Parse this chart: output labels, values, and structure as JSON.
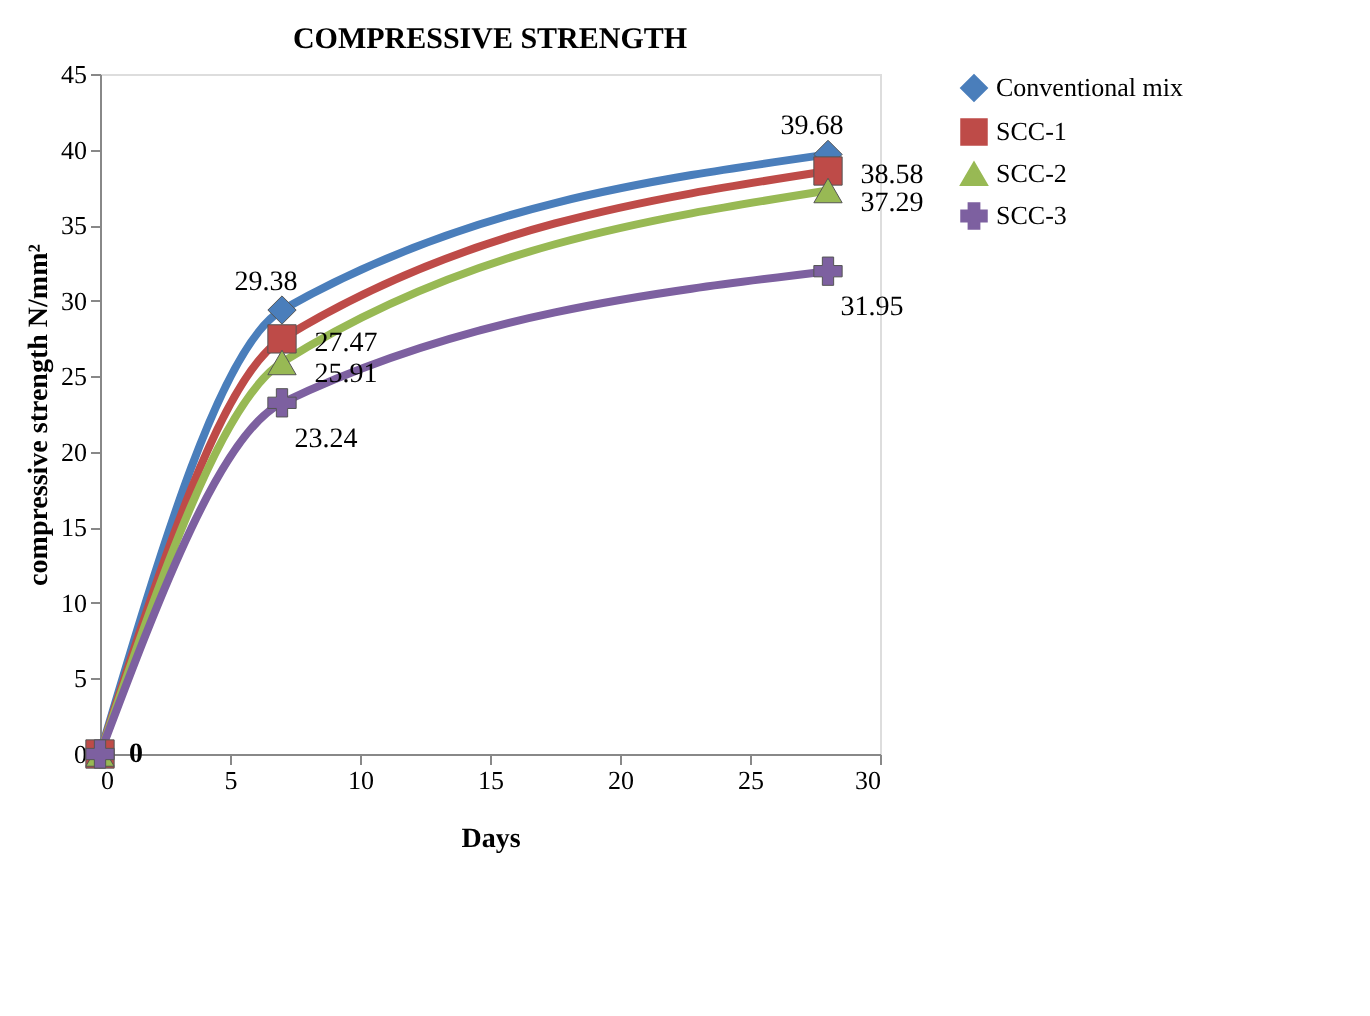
{
  "chart_data": {
    "type": "line",
    "title": "COMPRESSIVE STRENGTH",
    "xlabel": "Days",
    "ylabel": "compressive strength N/mm²",
    "x": [
      0,
      7,
      28
    ],
    "series": [
      {
        "name": "Conventional mix",
        "color": "#4a7ebb",
        "marker": "diamond",
        "values": [
          0,
          29.38,
          39.68
        ],
        "value_labels": [
          null,
          "29.38",
          "39.68"
        ]
      },
      {
        "name": "SCC-1",
        "color": "#be4b48",
        "marker": "square",
        "values": [
          0,
          27.47,
          38.58
        ],
        "value_labels": [
          null,
          "27.47",
          "38.58"
        ]
      },
      {
        "name": "SCC-2",
        "color": "#98b954",
        "marker": "triangle",
        "values": [
          0,
          25.91,
          37.29
        ],
        "value_labels": [
          null,
          "25.91",
          "37.29"
        ]
      },
      {
        "name": "SCC-3",
        "color": "#7d60a0",
        "marker": "cross",
        "values": [
          0,
          23.24,
          31.95
        ],
        "value_labels": [
          "0",
          "23.24",
          "31.95"
        ]
      }
    ],
    "xlim": [
      0,
      30
    ],
    "xticks": [
      0,
      5,
      10,
      15,
      20,
      25,
      30
    ],
    "ylim": [
      0,
      45
    ],
    "yticks": [
      0,
      5,
      10,
      15,
      20,
      25,
      30,
      35,
      40,
      45
    ],
    "grid": false,
    "legend": "right",
    "line_style": "solid"
  }
}
